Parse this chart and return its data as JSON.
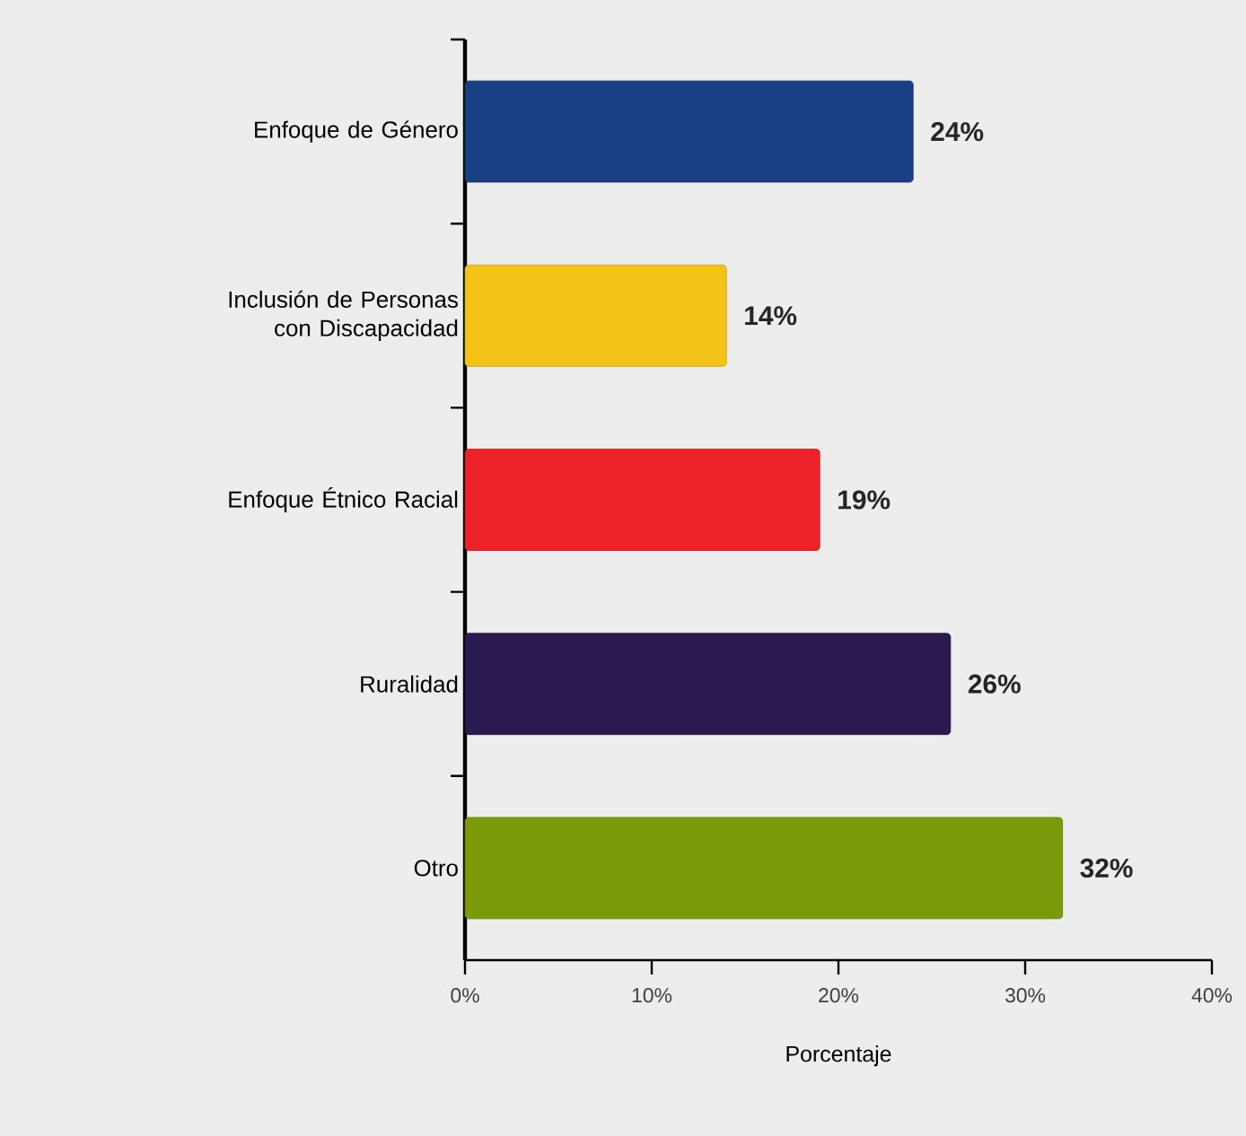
{
  "chart_data": {
    "type": "bar",
    "orientation": "horizontal",
    "xlabel": "Porcentaje",
    "categories": [
      "Enfoque de Género",
      "Inclusión de Personas con Discapacidad",
      "Enfoque Étnico Racial",
      "Ruralidad",
      "Otro"
    ],
    "values": [
      24,
      14,
      19,
      26,
      32
    ],
    "colors": [
      "#1a3f85",
      "#f5c315",
      "#ee2229",
      "#2b1a4f",
      "#7a9a0a"
    ],
    "value_labels": [
      "24%",
      "14%",
      "19%",
      "26%",
      "32%"
    ],
    "xlim": [
      0,
      40
    ],
    "xticks": [
      {
        "value": 0,
        "label": "0%"
      },
      {
        "value": 10,
        "label": "10%"
      },
      {
        "value": 20,
        "label": "20%"
      },
      {
        "value": 30,
        "label": "30%"
      },
      {
        "value": 40,
        "label": "40%"
      }
    ],
    "grid": false
  }
}
